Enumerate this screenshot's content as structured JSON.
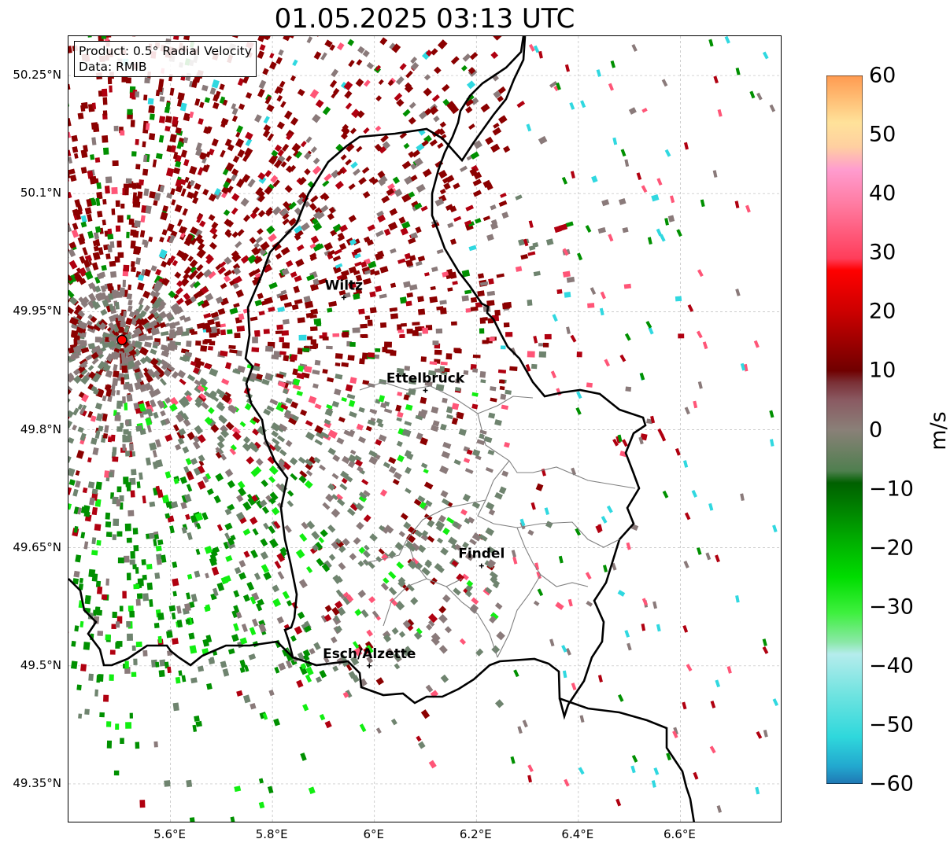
{
  "title": "01.05.2025 03:13 UTC",
  "info_box": {
    "product": "Product: 0.5° Radial Velocity",
    "data": "Data: RMIB"
  },
  "map": {
    "lon_range": [
      5.4,
      6.8
    ],
    "lat_range": [
      49.3,
      50.3
    ],
    "radar_site": {
      "lon": 5.505,
      "lat": 49.914
    },
    "cities": [
      {
        "name": "Wiltz",
        "lon": 5.94,
        "lat": 49.968
      },
      {
        "name": "Ettelbruck",
        "lon": 6.1,
        "lat": 49.85
      },
      {
        "name": "Findel",
        "lon": 6.21,
        "lat": 49.627
      },
      {
        "name": "Esch/Alzette",
        "lon": 5.99,
        "lat": 49.5
      }
    ],
    "lat_ticks": [
      {
        "label": "50.25°N",
        "value": 50.25
      },
      {
        "label": "50.1°N",
        "value": 50.1
      },
      {
        "label": "49.95°N",
        "value": 49.95
      },
      {
        "label": "49.8°N",
        "value": 49.8
      },
      {
        "label": "49.65°N",
        "value": 49.65
      },
      {
        "label": "49.5°N",
        "value": 49.5
      },
      {
        "label": "49.35°N",
        "value": 49.35
      }
    ],
    "lon_ticks": [
      {
        "label": "5.6°E",
        "value": 5.6
      },
      {
        "label": "5.8°E",
        "value": 5.8
      },
      {
        "label": "6°E",
        "value": 6.0
      },
      {
        "label": "6.2°E",
        "value": 6.2
      },
      {
        "label": "6.4°E",
        "value": 6.4
      },
      {
        "label": "6.6°E",
        "value": 6.6
      }
    ]
  },
  "colorbar": {
    "label": "m/s",
    "min": -60,
    "max": 60,
    "ticks": [
      {
        "label": "60",
        "value": 60
      },
      {
        "label": "50",
        "value": 50
      },
      {
        "label": "40",
        "value": 40
      },
      {
        "label": "30",
        "value": 30
      },
      {
        "label": "20",
        "value": 20
      },
      {
        "label": "10",
        "value": 10
      },
      {
        "label": "0",
        "value": 0
      },
      {
        "label": "−10",
        "value": -10
      },
      {
        "label": "−20",
        "value": -20
      },
      {
        "label": "−30",
        "value": -30
      },
      {
        "label": "−40",
        "value": -40
      },
      {
        "label": "−50",
        "value": -50
      },
      {
        "label": "−60",
        "value": -60
      }
    ],
    "stops": [
      {
        "v": -60,
        "c": "#1f77b4"
      },
      {
        "v": -57,
        "c": "#22a8cf"
      },
      {
        "v": -52,
        "c": "#2fd8dc"
      },
      {
        "v": -45,
        "c": "#6ee3e0"
      },
      {
        "v": -38,
        "c": "#b5ecec"
      },
      {
        "v": -36,
        "c": "#8be8a8"
      },
      {
        "v": -31,
        "c": "#3ef03e"
      },
      {
        "v": -25,
        "c": "#00dd00"
      },
      {
        "v": -19,
        "c": "#00b000"
      },
      {
        "v": -13,
        "c": "#007f00"
      },
      {
        "v": -9,
        "c": "#006000"
      },
      {
        "v": -7,
        "c": "#4f7f4f"
      },
      {
        "v": 0,
        "c": "#8a8078"
      },
      {
        "v": 5,
        "c": "#8a5a62"
      },
      {
        "v": 8,
        "c": "#7a3036"
      },
      {
        "v": 10,
        "c": "#700000"
      },
      {
        "v": 20,
        "c": "#cc0000"
      },
      {
        "v": 27,
        "c": "#ff0000"
      },
      {
        "v": 29,
        "c": "#ff3d5a"
      },
      {
        "v": 38,
        "c": "#ff7aa0"
      },
      {
        "v": 44,
        "c": "#ff9ccf"
      },
      {
        "v": 48,
        "c": "#ffd0a0"
      },
      {
        "v": 52,
        "c": "#ffe29a"
      },
      {
        "v": 60,
        "c": "#ff9a50"
      }
    ]
  },
  "colors": {
    "receding_dark": "#8b0000",
    "receding": "#b00010",
    "neutral": "#8a7a7a",
    "approach_gray": "#6f846f",
    "approach": "#009000",
    "approach_bright": "#11ee11",
    "fast": "#30d8e0",
    "pink": "#ff5577",
    "border": "#000000",
    "canton": "#808080"
  }
}
